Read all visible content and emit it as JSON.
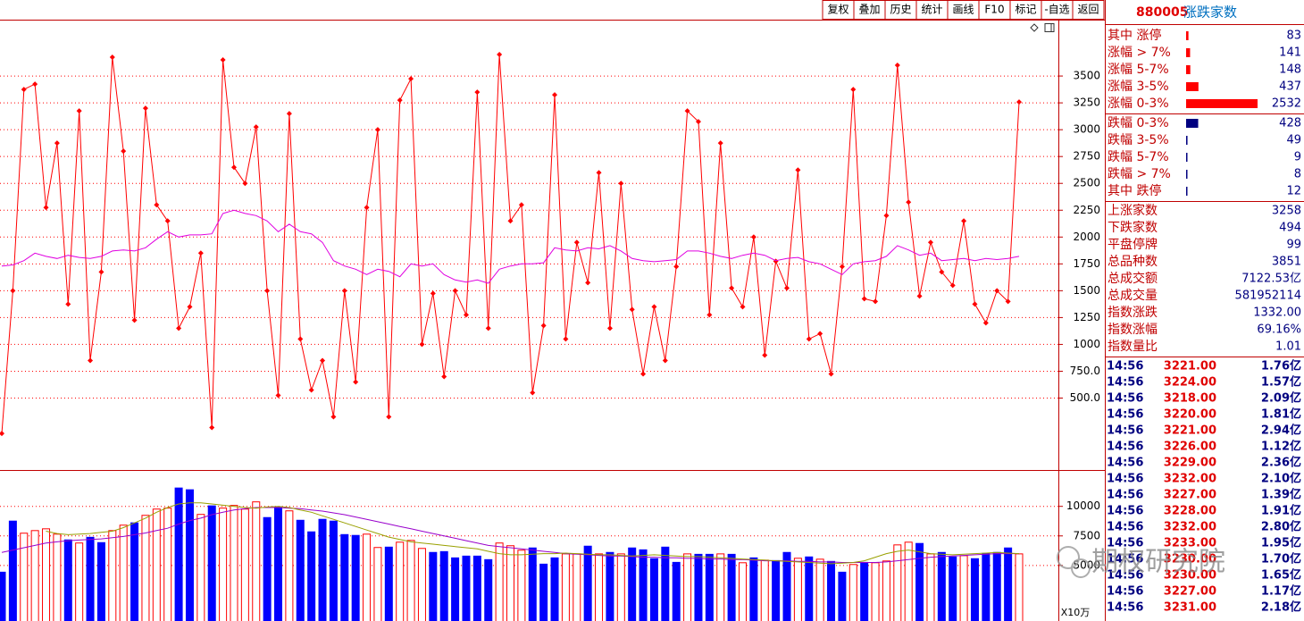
{
  "toolbar": [
    "复权",
    "叠加",
    "历史",
    "统计",
    "画线",
    "F10",
    "标记",
    "-自选",
    "返回"
  ],
  "chart_data": [
    {
      "type": "line",
      "ylim": [
        -170,
        4025
      ],
      "grid": true,
      "grid_color": "#ff0000",
      "yticks": [
        {
          "value": 500,
          "label": "500.0"
        },
        {
          "value": 750,
          "label": "750.0"
        },
        1000,
        1250,
        1500,
        1750,
        2000,
        2250,
        2500,
        2750,
        3000,
        3250,
        3500
      ],
      "series": [
        {
          "color": "#ff0000",
          "markers": true,
          "values": [
            170,
            1500,
            3375,
            3425,
            2275,
            2875,
            1375,
            3175,
            850,
            1675,
            3675,
            2800,
            1225,
            3200,
            2300,
            2150,
            1150,
            1350,
            1850,
            225,
            3650,
            2650,
            2500,
            3025,
            1500,
            525,
            3150,
            1050,
            575,
            850,
            325,
            1500,
            650,
            2275,
            3000,
            325,
            3275,
            3475,
            1000,
            1475,
            700,
            1500,
            1275,
            3350,
            1150,
            3700,
            2150,
            2300,
            550,
            1175,
            3325,
            1050,
            1950,
            1575,
            2600,
            1150,
            2500,
            1325,
            725,
            1350,
            850,
            1725,
            3175,
            3075,
            1275,
            2875,
            1525,
            1350,
            2000,
            900,
            1775,
            1525,
            2625,
            1050,
            1100,
            725,
            1725,
            3375,
            1425,
            1400,
            2200,
            3600,
            2325,
            1450,
            1950,
            1675,
            1550,
            2150,
            1375,
            1200,
            1500,
            1400,
            3258
          ]
        },
        {
          "color": "#e000e0",
          "markers": false,
          "values": [
            1730,
            1740,
            1780,
            1850,
            1820,
            1800,
            1830,
            1810,
            1800,
            1820,
            1870,
            1880,
            1870,
            1900,
            1980,
            2050,
            2000,
            2020,
            2020,
            2030,
            2220,
            2250,
            2220,
            2200,
            2150,
            2050,
            2120,
            2050,
            2030,
            1950,
            1780,
            1730,
            1700,
            1650,
            1700,
            1680,
            1630,
            1750,
            1730,
            1750,
            1650,
            1600,
            1580,
            1600,
            1570,
            1700,
            1730,
            1750,
            1750,
            1760,
            1900,
            1880,
            1870,
            1900,
            1890,
            1920,
            1870,
            1800,
            1780,
            1770,
            1780,
            1790,
            1870,
            1870,
            1850,
            1820,
            1800,
            1830,
            1850,
            1830,
            1780,
            1800,
            1810,
            1770,
            1750,
            1700,
            1650,
            1750,
            1770,
            1780,
            1820,
            1920,
            1880,
            1830,
            1850,
            1780,
            1790,
            1800,
            1780,
            1800,
            1790,
            1800,
            1820
          ]
        }
      ]
    },
    {
      "type": "bar",
      "ylim": [
        0,
        13000
      ],
      "grid": true,
      "grid_color": "#ff0000",
      "yticks": [
        10000,
        7500,
        5000
      ],
      "unit_label": "X10万",
      "hollow_color": "#ff0000",
      "values": [
        4470,
        8790,
        7730,
        7950,
        8100,
        7650,
        7200,
        6900,
        7420,
        6970,
        7950,
        8410,
        8640,
        9240,
        9770,
        9850,
        11590,
        11440,
        9320,
        10080,
        9850,
        10080,
        9770,
        10380,
        9090,
        10000,
        9620,
        8860,
        7880,
        8940,
        8790,
        7650,
        7580,
        7650,
        6520,
        6590,
        6970,
        7120,
        6440,
        6140,
        6210,
        5680,
        5830,
        5830,
        5530,
        6900,
        6670,
        6290,
        6520,
        5150,
        5680,
        5980,
        5980,
        6670,
        5980,
        6140,
        5980,
        6520,
        6360,
        5610,
        6590,
        5300,
        5980,
        5980,
        5980,
        5980,
        5980,
        5230,
        5680,
        5450,
        5450,
        6140,
        5610,
        5760,
        5530,
        5380,
        4470,
        5080,
        5300,
        5230,
        5380,
        6740,
        6970,
        6900,
        5980,
        6140,
        5760,
        5830,
        5610,
        6060,
        6140,
        6520,
        5980
      ],
      "colors": [
        "#0000ff",
        "#0000ff",
        "#ff0000",
        "#ff0000",
        "#ff0000",
        "#ff0000",
        "#0000ff",
        "#ff0000",
        "#0000ff",
        "#0000ff",
        "#ff0000",
        "#ff0000",
        "#0000ff",
        "#ff0000",
        "#ff0000",
        "#ff0000",
        "#0000ff",
        "#0000ff",
        "#ff0000",
        "#0000ff",
        "#ff0000",
        "#ff0000",
        "#ff0000",
        "#ff0000",
        "#0000ff",
        "#0000ff",
        "#ff0000",
        "#0000ff",
        "#0000ff",
        "#0000ff",
        "#0000ff",
        "#0000ff",
        "#0000ff",
        "#ff0000",
        "#ff0000",
        "#0000ff",
        "#ff0000",
        "#ff0000",
        "#ff0000",
        "#0000ff",
        "#0000ff",
        "#0000ff",
        "#0000ff",
        "#0000ff",
        "#0000ff",
        "#ff0000",
        "#ff0000",
        "#ff0000",
        "#0000ff",
        "#0000ff",
        "#0000ff",
        "#ff0000",
        "#ff0000",
        "#0000ff",
        "#ff0000",
        "#0000ff",
        "#ff0000",
        "#0000ff",
        "#0000ff",
        "#0000ff",
        "#0000ff",
        "#0000ff",
        "#ff0000",
        "#0000ff",
        "#0000ff",
        "#ff0000",
        "#0000ff",
        "#ff0000",
        "#0000ff",
        "#ff0000",
        "#0000ff",
        "#0000ff",
        "#ff0000",
        "#0000ff",
        "#ff0000",
        "#0000ff",
        "#0000ff",
        "#ff0000",
        "#0000ff",
        "#ff0000",
        "#ff0000",
        "#ff0000",
        "#ff0000",
        "#0000ff",
        "#ff0000",
        "#0000ff",
        "#0000ff",
        "#ff0000",
        "#0000ff",
        "#0000ff",
        "#0000ff",
        "#0000ff",
        "#ff0000"
      ],
      "series": [
        {
          "type": "line",
          "color": "#9900cc",
          "values": [
            6100,
            6300,
            6500,
            6700,
            6900,
            7000,
            7100,
            7150,
            7200,
            7250,
            7350,
            7450,
            7600,
            7750,
            7950,
            8150,
            8500,
            8800,
            9000,
            9300,
            9500,
            9700,
            9800,
            9900,
            9900,
            9900,
            9850,
            9800,
            9700,
            9600,
            9450,
            9300,
            9100,
            8900,
            8700,
            8500,
            8300,
            8100,
            7900,
            7700,
            7500,
            7300,
            7100,
            6900,
            6700,
            6600,
            6500,
            6400,
            6300,
            6200,
            6100,
            6000,
            5950,
            5900,
            5850,
            5800,
            5800,
            5750,
            5700,
            5700,
            5650,
            5650,
            5600,
            5600,
            5550,
            5550,
            5500,
            5500,
            5450,
            5400,
            5400,
            5400,
            5350,
            5350,
            5300,
            5300,
            5250,
            5250,
            5250,
            5250,
            5300,
            5400,
            5500,
            5600,
            5700,
            5750,
            5800,
            5850,
            5900,
            5950,
            6000,
            6000,
            6000
          ]
        },
        {
          "type": "line",
          "color": "#99a000",
          "values": [
            null,
            null,
            null,
            null,
            7900,
            7700,
            7600,
            7650,
            7700,
            7800,
            7900,
            8200,
            8600,
            9000,
            9500,
            9900,
            10200,
            10300,
            10300,
            10200,
            10100,
            10000,
            9900,
            9850,
            9950,
            10000,
            9900,
            9700,
            9500,
            9200,
            8900,
            8600,
            8300,
            8000,
            7700,
            7400,
            7200,
            7000,
            6900,
            6800,
            6700,
            6600,
            6500,
            6400,
            6200,
            6000,
            5900,
            5900,
            5950,
            6000,
            6000,
            6050,
            6000,
            5950,
            5900,
            5900,
            5850,
            5800,
            5850,
            5900,
            5850,
            5800,
            5750,
            5750,
            5700,
            5650,
            5600,
            5550,
            5500,
            5450,
            5400,
            5350,
            5300,
            5250,
            5200,
            5150,
            5200,
            5250,
            5400,
            5700,
            6000,
            6200,
            6300,
            6150,
            6000,
            5950,
            5900,
            5950,
            6000,
            6050,
            6100,
            6050,
            6000
          ]
        }
      ]
    }
  ],
  "panel": {
    "code": "880005",
    "title": "涨跌家数",
    "distribution": [
      {
        "label": "其中 涨停",
        "value": 83,
        "color": "#ff0000"
      },
      {
        "label": "涨幅 > 7%",
        "value": 141,
        "color": "#ff0000"
      },
      {
        "label": "涨幅 5-7%",
        "value": 148,
        "color": "#ff0000"
      },
      {
        "label": "涨幅 3-5%",
        "value": 437,
        "color": "#ff0000"
      },
      {
        "label": "涨幅 0-3%",
        "value": 2532,
        "color": "#ff0000"
      },
      {
        "label": "跌幅 0-3%",
        "value": 428,
        "color": "#000080"
      },
      {
        "label": "跌幅 3-5%",
        "value": 49,
        "color": "#000080"
      },
      {
        "label": "跌幅 5-7%",
        "value": 9,
        "color": "#000080"
      },
      {
        "label": "跌幅 > 7%",
        "value": 8,
        "color": "#000080"
      },
      {
        "label": "其中 跌停",
        "value": 12,
        "color": "#000080"
      }
    ],
    "stats": [
      [
        "上涨家数",
        "3258"
      ],
      [
        "下跌家数",
        "494"
      ],
      [
        "平盘停牌",
        "99"
      ],
      [
        "总品种数",
        "3851"
      ],
      [
        "总成交额",
        "7122.53亿"
      ],
      [
        "总成交量",
        "581952114"
      ],
      [
        "指数涨跌",
        "1332.00"
      ],
      [
        "指数涨幅",
        "69.16%"
      ],
      [
        "指数量比",
        "1.01"
      ]
    ],
    "trades": [
      [
        "14:56",
        "3221.00",
        "1.76亿"
      ],
      [
        "14:56",
        "3224.00",
        "1.57亿"
      ],
      [
        "14:56",
        "3218.00",
        "2.09亿"
      ],
      [
        "14:56",
        "3220.00",
        "1.81亿"
      ],
      [
        "14:56",
        "3221.00",
        "2.94亿"
      ],
      [
        "14:56",
        "3226.00",
        "1.12亿"
      ],
      [
        "14:56",
        "3229.00",
        "2.36亿"
      ],
      [
        "14:56",
        "3232.00",
        "2.10亿"
      ],
      [
        "14:56",
        "3227.00",
        "1.39亿"
      ],
      [
        "14:56",
        "3228.00",
        "1.91亿"
      ],
      [
        "14:56",
        "3232.00",
        "2.80亿"
      ],
      [
        "14:56",
        "3233.00",
        "1.95亿"
      ],
      [
        "14:56",
        "3230.00",
        "1.70亿"
      ],
      [
        "14:56",
        "3230.00",
        "1.65亿"
      ],
      [
        "14:56",
        "3227.00",
        "1.17亿"
      ],
      [
        "14:56",
        "3231.00",
        "2.18亿"
      ]
    ]
  },
  "watermark": "期权研究院"
}
